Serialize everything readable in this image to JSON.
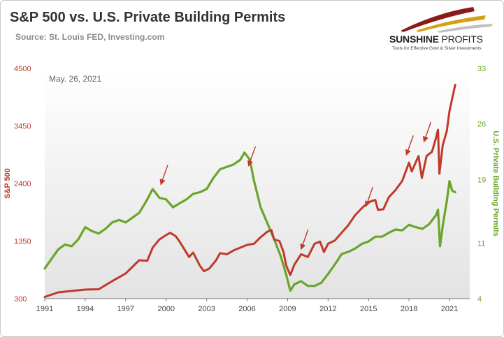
{
  "header": {
    "title": "S&P 500 vs. U.S. Private Building Permits",
    "source": "Source: St. Louis FED, Investing.com"
  },
  "logo": {
    "brand_bold": "SUNSHINE",
    "brand_thin": " PROFITS",
    "tagline": "Tools for Effective Gold & Silver Investments",
    "colors": [
      "#8b1a1a",
      "#d4a017",
      "#c0c0c0"
    ]
  },
  "colors": {
    "sp500": "#c0392b",
    "permits": "#6aa52a",
    "arrow": "#c0392b",
    "background_top": "#ffffff",
    "background_bottom": "#e3e3e3"
  },
  "chart_data": {
    "type": "line",
    "date_note": "May. 26, 2021",
    "xlabel": "",
    "x_ticks": [
      "1991",
      "1994",
      "1997",
      "2000",
      "2003",
      "2006",
      "2009",
      "2012",
      "2015",
      "2018",
      "2021"
    ],
    "xlim": [
      1991,
      2022.5
    ],
    "left_axis": {
      "label": "S&P 500",
      "ticks": [
        "4500",
        "3450",
        "2400",
        "1350",
        "300"
      ],
      "ylim": [
        300,
        4500
      ]
    },
    "right_axis": {
      "label": "U.S. Private Building Permits",
      "ticks": [
        "33",
        "26",
        "19",
        "11",
        "4"
      ],
      "ylim": [
        4,
        33
      ]
    },
    "series": [
      {
        "name": "S&P 500",
        "axis": "left",
        "points": [
          [
            1991.0,
            330
          ],
          [
            1992.0,
            415
          ],
          [
            1993.0,
            440
          ],
          [
            1994.0,
            465
          ],
          [
            1995.0,
            470
          ],
          [
            1996.0,
            620
          ],
          [
            1997.0,
            760
          ],
          [
            1998.0,
            1000
          ],
          [
            1998.6,
            990
          ],
          [
            1999.0,
            1230
          ],
          [
            1999.5,
            1380
          ],
          [
            2000.0,
            1460
          ],
          [
            2000.3,
            1500
          ],
          [
            2000.7,
            1440
          ],
          [
            2001.0,
            1340
          ],
          [
            2001.7,
            1060
          ],
          [
            2002.0,
            1140
          ],
          [
            2002.5,
            900
          ],
          [
            2002.8,
            800
          ],
          [
            2003.2,
            850
          ],
          [
            2003.7,
            1000
          ],
          [
            2004.0,
            1130
          ],
          [
            2004.5,
            1110
          ],
          [
            2005.0,
            1180
          ],
          [
            2005.5,
            1230
          ],
          [
            2006.0,
            1280
          ],
          [
            2006.5,
            1300
          ],
          [
            2007.0,
            1420
          ],
          [
            2007.5,
            1520
          ],
          [
            2007.8,
            1550
          ],
          [
            2008.0,
            1380
          ],
          [
            2008.4,
            1350
          ],
          [
            2008.7,
            1150
          ],
          [
            2008.9,
            900
          ],
          [
            2009.2,
            730
          ],
          [
            2009.5,
            920
          ],
          [
            2010.0,
            1110
          ],
          [
            2010.5,
            1060
          ],
          [
            2011.0,
            1300
          ],
          [
            2011.4,
            1340
          ],
          [
            2011.7,
            1150
          ],
          [
            2012.0,
            1300
          ],
          [
            2012.5,
            1360
          ],
          [
            2013.0,
            1500
          ],
          [
            2013.5,
            1640
          ],
          [
            2014.0,
            1820
          ],
          [
            2014.5,
            1950
          ],
          [
            2015.0,
            2060
          ],
          [
            2015.5,
            2100
          ],
          [
            2015.7,
            1920
          ],
          [
            2016.1,
            1930
          ],
          [
            2016.5,
            2150
          ],
          [
            2017.0,
            2280
          ],
          [
            2017.5,
            2450
          ],
          [
            2018.0,
            2780
          ],
          [
            2018.2,
            2620
          ],
          [
            2018.7,
            2900
          ],
          [
            2018.95,
            2500
          ],
          [
            2019.3,
            2900
          ],
          [
            2019.7,
            2980
          ],
          [
            2020.0,
            3230
          ],
          [
            2020.15,
            3380
          ],
          [
            2020.25,
            2580
          ],
          [
            2020.5,
            3100
          ],
          [
            2020.8,
            3360
          ],
          [
            2021.0,
            3720
          ],
          [
            2021.2,
            3950
          ],
          [
            2021.42,
            4200
          ]
        ]
      },
      {
        "name": "U.S. Private Building Permits",
        "axis": "right",
        "points": [
          [
            1991.0,
            7.8
          ],
          [
            1991.5,
            9.0
          ],
          [
            1992.0,
            10.2
          ],
          [
            1992.5,
            10.8
          ],
          [
            1993.0,
            10.6
          ],
          [
            1993.5,
            11.5
          ],
          [
            1994.0,
            13.0
          ],
          [
            1994.5,
            12.5
          ],
          [
            1995.0,
            12.2
          ],
          [
            1995.5,
            12.8
          ],
          [
            1996.0,
            13.6
          ],
          [
            1996.5,
            13.9
          ],
          [
            1997.0,
            13.6
          ],
          [
            1997.5,
            14.2
          ],
          [
            1998.0,
            14.8
          ],
          [
            1998.5,
            16.2
          ],
          [
            1999.0,
            17.8
          ],
          [
            1999.5,
            16.7
          ],
          [
            2000.0,
            16.5
          ],
          [
            2000.5,
            15.5
          ],
          [
            2001.0,
            16.0
          ],
          [
            2001.5,
            16.5
          ],
          [
            2002.0,
            17.2
          ],
          [
            2002.5,
            17.4
          ],
          [
            2003.0,
            17.8
          ],
          [
            2003.5,
            19.2
          ],
          [
            2004.0,
            20.3
          ],
          [
            2004.5,
            20.6
          ],
          [
            2005.0,
            20.9
          ],
          [
            2005.5,
            21.5
          ],
          [
            2005.8,
            22.4
          ],
          [
            2006.2,
            21.5
          ],
          [
            2006.5,
            18.9
          ],
          [
            2007.0,
            15.5
          ],
          [
            2007.5,
            13.5
          ],
          [
            2008.0,
            11.5
          ],
          [
            2008.5,
            9.3
          ],
          [
            2008.9,
            7.0
          ],
          [
            2009.2,
            5.0
          ],
          [
            2009.5,
            5.8
          ],
          [
            2010.0,
            6.2
          ],
          [
            2010.5,
            5.6
          ],
          [
            2011.0,
            5.6
          ],
          [
            2011.5,
            6.0
          ],
          [
            2012.0,
            7.1
          ],
          [
            2012.5,
            8.3
          ],
          [
            2013.0,
            9.6
          ],
          [
            2013.5,
            9.9
          ],
          [
            2014.0,
            10.3
          ],
          [
            2014.5,
            10.9
          ],
          [
            2015.0,
            11.2
          ],
          [
            2015.5,
            11.8
          ],
          [
            2016.0,
            11.8
          ],
          [
            2016.5,
            12.3
          ],
          [
            2017.0,
            12.7
          ],
          [
            2017.5,
            12.6
          ],
          [
            2018.0,
            13.3
          ],
          [
            2018.5,
            13.0
          ],
          [
            2019.0,
            12.8
          ],
          [
            2019.5,
            13.4
          ],
          [
            2020.0,
            14.5
          ],
          [
            2020.15,
            15.2
          ],
          [
            2020.3,
            10.6
          ],
          [
            2020.5,
            13.2
          ],
          [
            2020.8,
            16.3
          ],
          [
            2021.0,
            18.8
          ],
          [
            2021.2,
            17.6
          ],
          [
            2021.42,
            17.4
          ]
        ]
      }
    ],
    "annotations": [
      {
        "type": "arrow",
        "x": 1999.6,
        "y_left": 2380
      },
      {
        "type": "arrow",
        "x": 2006.1,
        "y_left": 2720
      },
      {
        "type": "arrow",
        "x": 2010.0,
        "y_left": 1200
      },
      {
        "type": "arrow",
        "x": 2014.8,
        "y_left": 1980
      },
      {
        "type": "arrow",
        "x": 2017.8,
        "y_left": 2920
      },
      {
        "type": "arrow",
        "x": 2019.1,
        "y_left": 3160
      }
    ]
  }
}
